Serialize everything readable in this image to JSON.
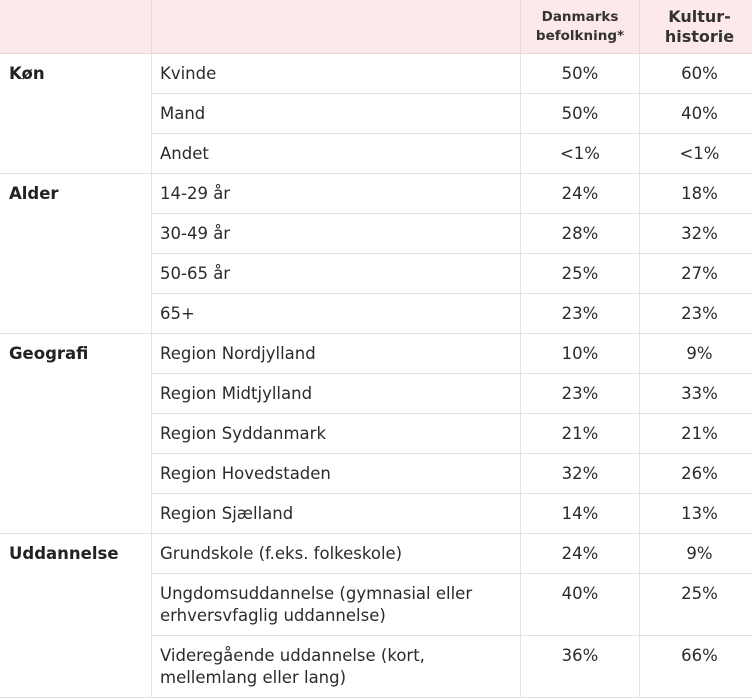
{
  "header": {
    "col_danmark": "Danmarks befolkning*",
    "col_kultur": "Kultur-historie"
  },
  "groups": [
    {
      "category": "Køn",
      "rows": [
        {
          "label": "Kvinde",
          "danmark": "50%",
          "kultur": "60%"
        },
        {
          "label": "Mand",
          "danmark": "50%",
          "kultur": "40%"
        },
        {
          "label": "Andet",
          "danmark": "<1%",
          "kultur": "<1%"
        }
      ]
    },
    {
      "category": "Alder",
      "rows": [
        {
          "label": "14-29 år",
          "danmark": "24%",
          "kultur": "18%"
        },
        {
          "label": "30-49 år",
          "danmark": "28%",
          "kultur": "32%"
        },
        {
          "label": "50-65 år",
          "danmark": "25%",
          "kultur": "27%"
        },
        {
          "label": "65+",
          "danmark": "23%",
          "kultur": "23%"
        }
      ]
    },
    {
      "category": "Geografi",
      "rows": [
        {
          "label": "Region Nordjylland",
          "danmark": "10%",
          "kultur": "9%"
        },
        {
          "label": "Region Midtjylland",
          "danmark": "23%",
          "kultur": "33%"
        },
        {
          "label": "Region Syddanmark",
          "danmark": "21%",
          "kultur": "21%"
        },
        {
          "label": "Region Hovedstaden",
          "danmark": "32%",
          "kultur": "26%"
        },
        {
          "label": "Region Sjælland",
          "danmark": "14%",
          "kultur": "13%"
        }
      ]
    },
    {
      "category": "Uddannelse",
      "rows": [
        {
          "label": "Grundskole (f.eks. folkeskole)",
          "danmark": "24%",
          "kultur": "9%"
        },
        {
          "label": "Ungdomsuddannelse (gymnasial eller erhversvfaglig uddannelse)",
          "danmark": "40%",
          "kultur": "25%"
        },
        {
          "label": "Videregående uddannelse (kort, mellemlang eller lang)",
          "danmark": "36%",
          "kultur": "66%"
        }
      ]
    }
  ]
}
